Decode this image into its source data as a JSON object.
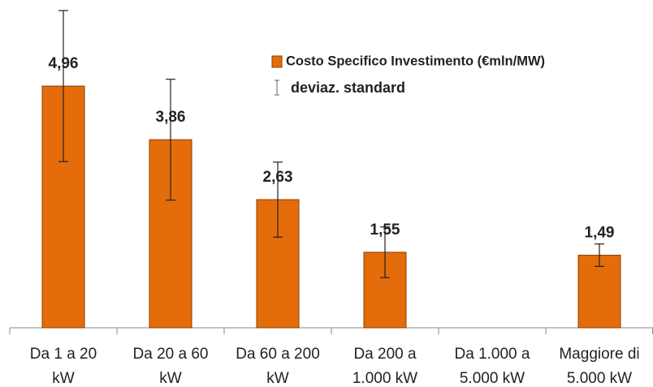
{
  "chart_data": {
    "type": "bar",
    "categories": [
      "Da 1 a 20 kW",
      "Da 20 a 60 kW",
      "Da 60 a 200 kW",
      "Da 200 a 1.000 kW",
      "Da 1.000 a 5.000 kW",
      "Maggiore di 5.000 kW"
    ],
    "series": [
      {
        "name": "Costo Specifico Investimento (€mln/MW)",
        "color": "#e46c0a",
        "values": [
          4.96,
          3.86,
          2.63,
          1.55,
          null,
          1.49
        ],
        "value_labels": [
          "4,96",
          "3,86",
          "2,63",
          "1,55",
          null,
          "1,49"
        ],
        "errors": [
          1.55,
          1.24,
          0.77,
          0.52,
          null,
          0.23
        ]
      }
    ],
    "error_legend": "deviaz. standard",
    "legend": "top-right"
  }
}
